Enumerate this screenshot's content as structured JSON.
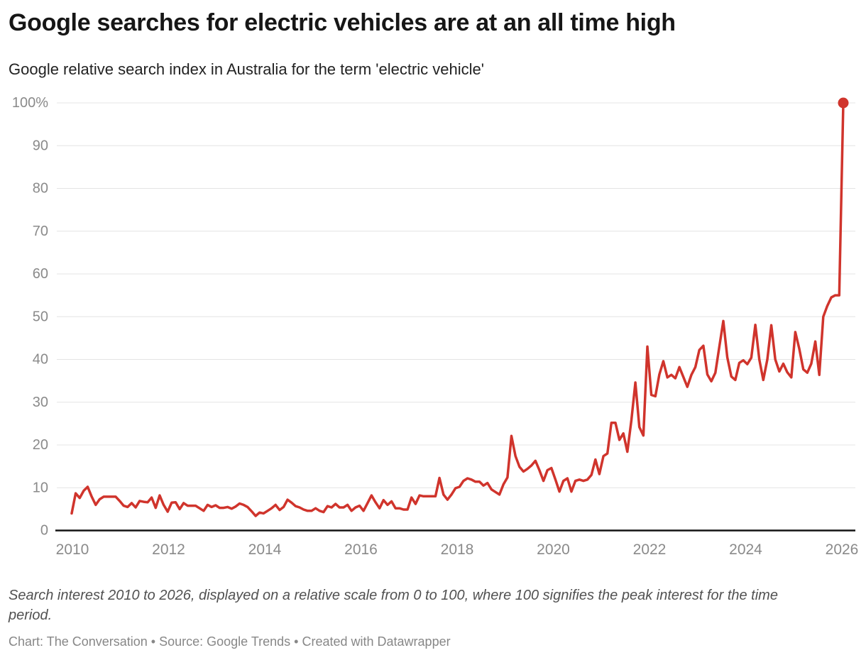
{
  "header": {
    "title": "Google searches for electric vehicles are at an all time high",
    "subtitle": "Google relative search index in Australia for the term 'electric vehicle'"
  },
  "chart_data": {
    "type": "line",
    "title": "Google searches for electric vehicles are at an all time high",
    "subtitle": "Google relative search index in Australia for the term 'electric vehicle'",
    "xlabel": "",
    "ylabel": "",
    "ylim": [
      0,
      100
    ],
    "grid": "horizontal",
    "legend": "none",
    "end_dot_on_last_point": true,
    "x_tick_labels": [
      "2010",
      "2012",
      "2014",
      "2016",
      "2018",
      "2020",
      "2022",
      "2024",
      "2026"
    ],
    "y_ticks": [
      100,
      90,
      80,
      70,
      60,
      50,
      40,
      30,
      20,
      10,
      0
    ],
    "y_tick_labels": [
      "100%",
      "90",
      "80",
      "70",
      "60",
      "50",
      "40",
      "30",
      "20",
      "10",
      "0"
    ],
    "series": [
      {
        "name": "Google relative search index for 'electric vehicle' (Australia)",
        "color": "#d0342c",
        "start": "2010-01",
        "end": "2026-02",
        "interval": "monthly",
        "peak_value": 100,
        "values": [
          4,
          8.7,
          7.6,
          9.3,
          10.2,
          7.9,
          6,
          7.3,
          7.9,
          7.9,
          7.9,
          7.9,
          6.9,
          5.8,
          5.5,
          6.4,
          5.4,
          6.9,
          6.7,
          6.6,
          7.7,
          5.3,
          8.2,
          6,
          4.4,
          6.5,
          6.6,
          5,
          6.4,
          5.8,
          5.8,
          5.8,
          5.2,
          4.6,
          6,
          5.5,
          5.9,
          5.3,
          5.3,
          5.5,
          5.1,
          5.6,
          6.3,
          6,
          5.5,
          4.5,
          3.4,
          4.2,
          4,
          4.6,
          5.2,
          6,
          4.8,
          5.5,
          7.2,
          6.5,
          5.7,
          5.4,
          4.9,
          4.6,
          4.6,
          5.2,
          4.6,
          4.3,
          5.7,
          5.4,
          6.2,
          5.4,
          5.4,
          6,
          4.6,
          5.4,
          5.8,
          4.6,
          6.4,
          8.2,
          6.6,
          5.2,
          7.1,
          6,
          6.8,
          5.2,
          5.2,
          4.9,
          4.9,
          7.7,
          6.2,
          8.2,
          8,
          8,
          8,
          8,
          12.3,
          8.4,
          7.2,
          8.4,
          9.9,
          10.2,
          11.6,
          12.2,
          11.9,
          11.4,
          11.4,
          10.5,
          11.1,
          9.6,
          9,
          8.4,
          10.8,
          12.4,
          22.1,
          17.4,
          14.9,
          13.8,
          14.4,
          15.2,
          16.3,
          14.1,
          11.6,
          14.1,
          14.6,
          11.9,
          9.1,
          11.6,
          12.2,
          9.1,
          11.6,
          11.9,
          11.6,
          11.9,
          13,
          16.6,
          13.2,
          17.4,
          18,
          25.2,
          25.2,
          21.2,
          22.7,
          18.4,
          25.8,
          34.6,
          24.2,
          22.2,
          43,
          31.7,
          31.4,
          36.5,
          39.6,
          35.8,
          36.4,
          35.6,
          38.2,
          35.9,
          33.6,
          36.4,
          38.2,
          42.2,
          43.2,
          36.5,
          34.9,
          36.9,
          43,
          49,
          40.5,
          36,
          35.2,
          39.2,
          39.8,
          38.9,
          40.4,
          48.1,
          40,
          35.2,
          40,
          48,
          40,
          37.2,
          39,
          37,
          35.8,
          46.4,
          42.5,
          37.7,
          36.9,
          39,
          44.2,
          36.4,
          50,
          52.5,
          54.5,
          55,
          55,
          100
        ]
      }
    ]
  },
  "footer": {
    "note": "Search interest 2010 to 2026, displayed on a relative scale from 0 to 100, where 100 signifies the peak interest for the time period.",
    "credit": "Chart: The Conversation • Source: Google Trends • Created with Datawrapper"
  },
  "colors": {
    "line": "#d0342c",
    "grid": "#e4e4e4",
    "axis": "#141414",
    "tick_label": "#8a8a8a",
    "title": "#161616",
    "subtitle": "#222222",
    "note": "#515151",
    "credit": "#878787"
  }
}
